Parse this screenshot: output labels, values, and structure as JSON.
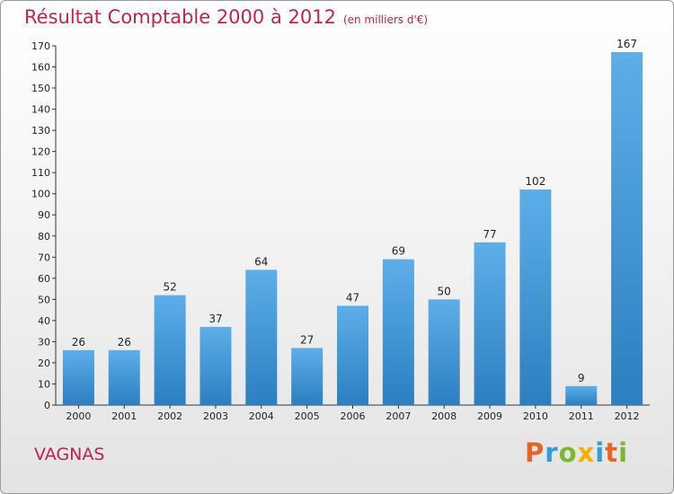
{
  "title": "Résultat Comptable 2000 à 2012",
  "subtitle": "(en milliers d'€)",
  "commune": "VAGNAS",
  "brand": {
    "letters": [
      {
        "char": "P",
        "color": "#e8632a"
      },
      {
        "char": "r",
        "color": "#2a9fd8"
      },
      {
        "char": "o",
        "color": "#7ab830"
      },
      {
        "char": "x",
        "color": "#f0b400"
      },
      {
        "char": "i",
        "color": "#2a9fd8"
      },
      {
        "char": "t",
        "color": "#e8632a"
      },
      {
        "char": "i",
        "color": "#7ab830"
      }
    ]
  },
  "colors": {
    "title": "#c4224f",
    "bar_top": "#5daee8",
    "bar_bottom": "#2c7fc0"
  },
  "chart_data": {
    "type": "bar",
    "categories": [
      "2000",
      "2001",
      "2002",
      "2003",
      "2004",
      "2005",
      "2006",
      "2007",
      "2008",
      "2009",
      "2010",
      "2011",
      "2012"
    ],
    "values": [
      26,
      26,
      52,
      37,
      64,
      27,
      47,
      69,
      50,
      77,
      102,
      9,
      167
    ],
    "ylim": [
      0,
      170
    ],
    "yticks": [
      0,
      10,
      20,
      30,
      40,
      50,
      60,
      70,
      80,
      90,
      100,
      110,
      120,
      130,
      140,
      150,
      160,
      170
    ],
    "grid": false,
    "legend": "none"
  }
}
